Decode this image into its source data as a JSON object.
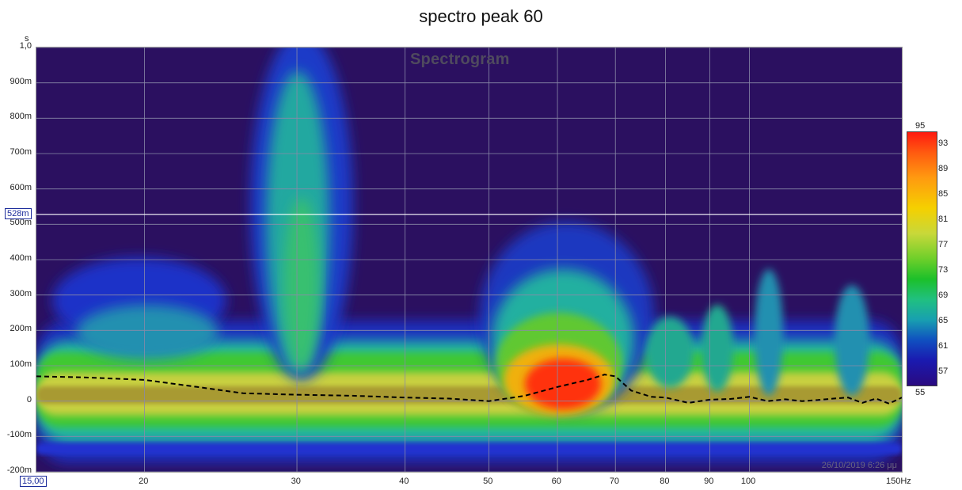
{
  "title": "spectro peak 60",
  "chart_data": {
    "type": "heatmap",
    "title": "spectro peak 60",
    "plot_label": "Spectrogram",
    "x_axis": {
      "scale": "log",
      "range": [
        15,
        150
      ],
      "ticks": [
        {
          "value": 20,
          "label": "20"
        },
        {
          "value": 30,
          "label": "30"
        },
        {
          "value": 40,
          "label": "40"
        },
        {
          "value": 50,
          "label": "50"
        },
        {
          "value": 60,
          "label": "60"
        },
        {
          "value": 70,
          "label": "70"
        },
        {
          "value": 80,
          "label": "80"
        },
        {
          "value": 90,
          "label": "90"
        },
        {
          "value": 100,
          "label": "100"
        }
      ],
      "start_label": "15,00",
      "end_label": "150Hz"
    },
    "y_axis": {
      "unit": "s",
      "range": [
        -0.2,
        1.0
      ],
      "ticks": [
        {
          "value": 1.0,
          "label": "1,0"
        },
        {
          "value": 0.9,
          "label": "900m"
        },
        {
          "value": 0.8,
          "label": "800m"
        },
        {
          "value": 0.7,
          "label": "700m"
        },
        {
          "value": 0.6,
          "label": "600m"
        },
        {
          "value": 0.5,
          "label": "500m"
        },
        {
          "value": 0.4,
          "label": "400m"
        },
        {
          "value": 0.3,
          "label": "300m"
        },
        {
          "value": 0.2,
          "label": "200m"
        },
        {
          "value": 0.1,
          "label": "100m"
        },
        {
          "value": 0.0,
          "label": "0"
        },
        {
          "value": -0.1,
          "label": "-100m"
        },
        {
          "value": -0.2,
          "label": "-200m"
        }
      ]
    },
    "marker": {
      "value": 0.528,
      "label": "528m",
      "color": "#ffffff"
    },
    "colorbar": {
      "min": 55,
      "max": 95,
      "min_label": "55",
      "max_label": "95",
      "ticks": [
        "93",
        "89",
        "85",
        "81",
        "77",
        "73",
        "69",
        "65",
        "61",
        "57"
      ],
      "tick_values": [
        93,
        89,
        85,
        81,
        77,
        73,
        69,
        65,
        61,
        57
      ]
    },
    "peak_line": {
      "style": "dashed",
      "color": "#000000",
      "points": [
        [
          15,
          0.07
        ],
        [
          17,
          0.067
        ],
        [
          20,
          0.06
        ],
        [
          23,
          0.04
        ],
        [
          26,
          0.022
        ],
        [
          30,
          0.018
        ],
        [
          35,
          0.015
        ],
        [
          40,
          0.01
        ],
        [
          45,
          0.007
        ],
        [
          50,
          0.0
        ],
        [
          55,
          0.015
        ],
        [
          60,
          0.04
        ],
        [
          65,
          0.06
        ],
        [
          68,
          0.075
        ],
        [
          70,
          0.07
        ],
        [
          73,
          0.03
        ],
        [
          77,
          0.012
        ],
        [
          80,
          0.01
        ],
        [
          85,
          -0.005
        ],
        [
          90,
          0.004
        ],
        [
          95,
          0.006
        ],
        [
          100,
          0.012
        ],
        [
          105,
          0.0
        ],
        [
          110,
          0.005
        ],
        [
          115,
          0.0
        ],
        [
          120,
          0.003
        ],
        [
          125,
          0.007
        ],
        [
          130,
          0.01
        ],
        [
          135,
          -0.005
        ],
        [
          140,
          0.007
        ],
        [
          145,
          -0.007
        ],
        [
          150,
          0.01
        ]
      ]
    },
    "grid": true,
    "timestamp": "26/10/2019 6:26 μμ"
  }
}
